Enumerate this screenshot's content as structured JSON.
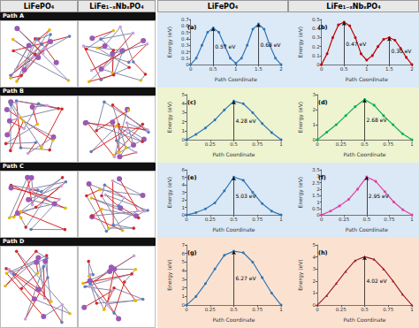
{
  "columns": [
    "LiFePO₄",
    "LiFe₁₋ₓNbₓPO₄"
  ],
  "rows": [
    "Path A",
    "Path B",
    "Path C",
    "Path D"
  ],
  "chart_data": [
    {
      "type": "line",
      "title": "(a)",
      "xlabel": "Path Coordinate",
      "ylabel": "Energy (eV)",
      "x": [
        0,
        0.125,
        0.25,
        0.375,
        0.5,
        0.625,
        0.75,
        0.875,
        1,
        1.125,
        1.25,
        1.375,
        1.5,
        1.625,
        1.75,
        1.875,
        2
      ],
      "values": [
        0,
        0.1,
        0.3,
        0.5,
        0.57,
        0.5,
        0.3,
        0.1,
        0.02,
        0.1,
        0.3,
        0.55,
        0.63,
        0.55,
        0.3,
        0.1,
        0
      ],
      "color": "#2e75b6",
      "marker": "circle",
      "grid": false,
      "xlim": [
        0,
        2
      ],
      "xticks": [
        0,
        0.5,
        1,
        1.5,
        2
      ],
      "ylim": [
        0,
        0.7
      ],
      "yticks": [
        0,
        0.1,
        0.2,
        0.3,
        0.4,
        0.5,
        0.6,
        0.7
      ],
      "annotations": [
        {
          "text": "0.57 eV",
          "x": 0.5,
          "y": 0.57
        },
        {
          "text": "0.63 eV",
          "x": 1.5,
          "y": 0.63
        }
      ]
    },
    {
      "type": "line",
      "title": "(b)",
      "xlabel": "Path Coordinate",
      "ylabel": "Energy (eV)",
      "x": [
        0,
        0.125,
        0.25,
        0.375,
        0.5,
        0.625,
        0.75,
        0.875,
        1,
        1.125,
        1.25,
        1.375,
        1.5,
        1.625,
        1.75,
        1.875,
        2
      ],
      "values": [
        0,
        0.12,
        0.3,
        0.44,
        0.47,
        0.43,
        0.3,
        0.12,
        0.05,
        0.1,
        0.2,
        0.28,
        0.3,
        0.27,
        0.18,
        0.08,
        0
      ],
      "color": "#c00000",
      "marker": "circle",
      "grid": false,
      "xlim": [
        0,
        2
      ],
      "xticks": [
        0,
        0.5,
        1,
        1.5,
        2
      ],
      "ylim": [
        0,
        0.5
      ],
      "yticks": [
        0,
        0.1,
        0.2,
        0.3,
        0.4,
        0.5
      ],
      "annotations": [
        {
          "text": "0.47 eV",
          "x": 0.5,
          "y": 0.47
        },
        {
          "text": "0.30 eV",
          "x": 1.5,
          "y": 0.3
        }
      ]
    },
    {
      "type": "line",
      "title": "(c)",
      "xlabel": "Path Coordinate",
      "ylabel": "Energy (eV)",
      "x": [
        0,
        0.1,
        0.2,
        0.3,
        0.4,
        0.5,
        0.6,
        0.7,
        0.8,
        0.9,
        1
      ],
      "values": [
        0,
        0.6,
        1.3,
        2.2,
        3.3,
        4.28,
        4.0,
        3.0,
        1.8,
        0.8,
        0
      ],
      "color": "#2e75b6",
      "marker": "circle",
      "grid": false,
      "xlim": [
        0,
        1
      ],
      "xticks": [
        0,
        0.25,
        0.5,
        0.75,
        1
      ],
      "ylim": [
        0,
        5
      ],
      "yticks": [
        0,
        1,
        2,
        3,
        4,
        5
      ],
      "annotations": [
        {
          "text": "4.28 eV",
          "x": 0.5,
          "y": 4.28
        }
      ]
    },
    {
      "type": "line",
      "title": "(d)",
      "xlabel": "Path Coordinate",
      "ylabel": "Energy (eV)",
      "x": [
        0,
        0.1,
        0.2,
        0.3,
        0.4,
        0.5,
        0.6,
        0.7,
        0.8,
        0.9,
        1
      ],
      "values": [
        0,
        0.5,
        1.0,
        1.6,
        2.2,
        2.68,
        2.3,
        1.6,
        1.0,
        0.4,
        0
      ],
      "color": "#00b050",
      "marker": "circle",
      "grid": false,
      "xlim": [
        0,
        1
      ],
      "xticks": [
        0,
        0.25,
        0.5,
        0.75,
        1
      ],
      "ylim": [
        0,
        3
      ],
      "yticks": [
        0,
        1,
        2,
        3
      ],
      "annotations": [
        {
          "text": "2.68 eV",
          "x": 0.5,
          "y": 2.68
        }
      ]
    },
    {
      "type": "line",
      "title": "(e)",
      "xlabel": "Path Coordinate",
      "ylabel": "Energy (eV)",
      "x": [
        0,
        0.1,
        0.2,
        0.3,
        0.4,
        0.5,
        0.6,
        0.7,
        0.8,
        0.9,
        1
      ],
      "values": [
        0,
        0.3,
        0.8,
        1.6,
        3.2,
        5.03,
        4.6,
        3.0,
        1.5,
        0.5,
        0
      ],
      "color": "#2e75b6",
      "marker": "circle",
      "grid": false,
      "xlim": [
        0,
        1
      ],
      "xticks": [
        0,
        0.25,
        0.5,
        0.75,
        1
      ],
      "ylim": [
        0,
        6
      ],
      "yticks": [
        0,
        1,
        2,
        3,
        4,
        5,
        6
      ],
      "annotations": [
        {
          "text": "5.03 eV",
          "x": 0.5,
          "y": 5.03
        }
      ]
    },
    {
      "type": "line",
      "title": "(f)",
      "xlabel": "Path Coordinate",
      "ylabel": "Energy (eV)",
      "x": [
        0,
        0.1,
        0.2,
        0.3,
        0.4,
        0.5,
        0.6,
        0.7,
        0.8,
        0.9,
        1
      ],
      "values": [
        0,
        0.3,
        0.7,
        1.2,
        2.0,
        2.95,
        2.6,
        1.8,
        1.0,
        0.4,
        0
      ],
      "color": "#e040a0",
      "marker": "circle",
      "grid": false,
      "xlim": [
        0,
        1
      ],
      "xticks": [
        0,
        0.25,
        0.5,
        0.75,
        1
      ],
      "ylim": [
        0,
        3.5
      ],
      "yticks": [
        0,
        0.5,
        1,
        1.5,
        2,
        2.5,
        3,
        3.5
      ],
      "annotations": [
        {
          "text": "2.95 eV",
          "x": 0.5,
          "y": 2.95
        }
      ]
    },
    {
      "type": "line",
      "title": "(g)",
      "xlabel": "Path Coordinate",
      "ylabel": "Energy (eV)",
      "x": [
        0,
        0.1,
        0.2,
        0.3,
        0.4,
        0.5,
        0.6,
        0.7,
        0.8,
        0.9,
        1
      ],
      "values": [
        0,
        1.0,
        2.5,
        4.2,
        5.8,
        6.27,
        6.1,
        5.0,
        3.2,
        1.4,
        0
      ],
      "color": "#2e75b6",
      "marker": "circle",
      "grid": false,
      "xlim": [
        0,
        1
      ],
      "xticks": [
        0,
        0.25,
        0.5,
        0.75,
        1
      ],
      "ylim": [
        0,
        7
      ],
      "yticks": [
        0,
        1,
        2,
        3,
        4,
        5,
        6,
        7
      ],
      "annotations": [
        {
          "text": "6.27 eV",
          "x": 0.5,
          "y": 6.27
        }
      ]
    },
    {
      "type": "line",
      "title": "(h)",
      "xlabel": "Path Coordinate",
      "ylabel": "Energy (eV)",
      "x": [
        0,
        0.1,
        0.2,
        0.3,
        0.4,
        0.5,
        0.6,
        0.7,
        0.8,
        0.9,
        1
      ],
      "values": [
        0,
        0.8,
        1.8,
        2.8,
        3.7,
        4.02,
        3.8,
        3.0,
        2.0,
        0.9,
        0
      ],
      "color": "#a0202a",
      "marker": "triangle",
      "grid": false,
      "xlim": [
        0,
        1
      ],
      "xticks": [
        0,
        0.25,
        0.5,
        0.75,
        1
      ],
      "ylim": [
        0,
        5
      ],
      "yticks": [
        0,
        1,
        2,
        3,
        4,
        5
      ],
      "annotations": [
        {
          "text": "4.02 eV",
          "x": 0.5,
          "y": 4.02
        }
      ]
    }
  ]
}
